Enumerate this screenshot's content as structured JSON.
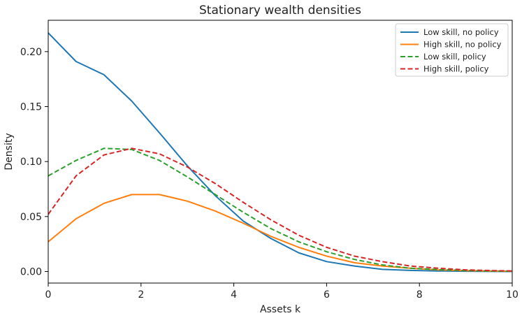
{
  "chart_data": {
    "type": "line",
    "title": "Stationary wealth densities",
    "xlabel": "Assets k",
    "ylabel": "Density",
    "xlim": [
      0,
      10
    ],
    "ylim": [
      -0.0105,
      0.2285
    ],
    "xticks": [
      0,
      2,
      4,
      6,
      8,
      10
    ],
    "xtick_labels": [
      "0",
      "2",
      "4",
      "6",
      "8",
      "10"
    ],
    "yticks": [
      0.0,
      0.05,
      0.1,
      0.15,
      0.2
    ],
    "ytick_labels": [
      "0.00",
      "0.05",
      "0.10",
      "0.15",
      "0.20"
    ],
    "grid": false,
    "legend_position": "top-right",
    "x": [
      0,
      0.6,
      1.2,
      1.8,
      2.4,
      3.0,
      3.6,
      4.2,
      4.8,
      5.4,
      6.0,
      6.6,
      7.2,
      7.8,
      8.4,
      9.0,
      9.6,
      10.0
    ],
    "series": [
      {
        "name": "Low skill, no policy",
        "color": "#1f77b4",
        "style": "solid",
        "values": [
          0.217,
          0.191,
          0.179,
          0.155,
          0.126,
          0.096,
          0.069,
          0.046,
          0.03,
          0.017,
          0.009,
          0.005,
          0.002,
          0.001,
          0.0005,
          0.0002,
          0.0001,
          0.0
        ]
      },
      {
        "name": "High skill, no policy",
        "color": "#ff7f0e",
        "style": "solid",
        "values": [
          0.027,
          0.048,
          0.062,
          0.07,
          0.07,
          0.064,
          0.055,
          0.044,
          0.032,
          0.022,
          0.014,
          0.008,
          0.005,
          0.003,
          0.0015,
          0.0008,
          0.0004,
          0.0002
        ]
      },
      {
        "name": "Low skill, policy",
        "color": "#2ca02c",
        "style": "dashed",
        "values": [
          0.087,
          0.101,
          0.112,
          0.111,
          0.101,
          0.086,
          0.07,
          0.054,
          0.039,
          0.027,
          0.018,
          0.011,
          0.006,
          0.003,
          0.0018,
          0.0009,
          0.0004,
          0.0002
        ]
      },
      {
        "name": "High skill, policy",
        "color": "#d62728",
        "style": "dashed",
        "values": [
          0.052,
          0.087,
          0.106,
          0.112,
          0.107,
          0.095,
          0.08,
          0.063,
          0.047,
          0.033,
          0.022,
          0.014,
          0.009,
          0.005,
          0.003,
          0.0015,
          0.0008,
          0.0005
        ]
      }
    ]
  }
}
